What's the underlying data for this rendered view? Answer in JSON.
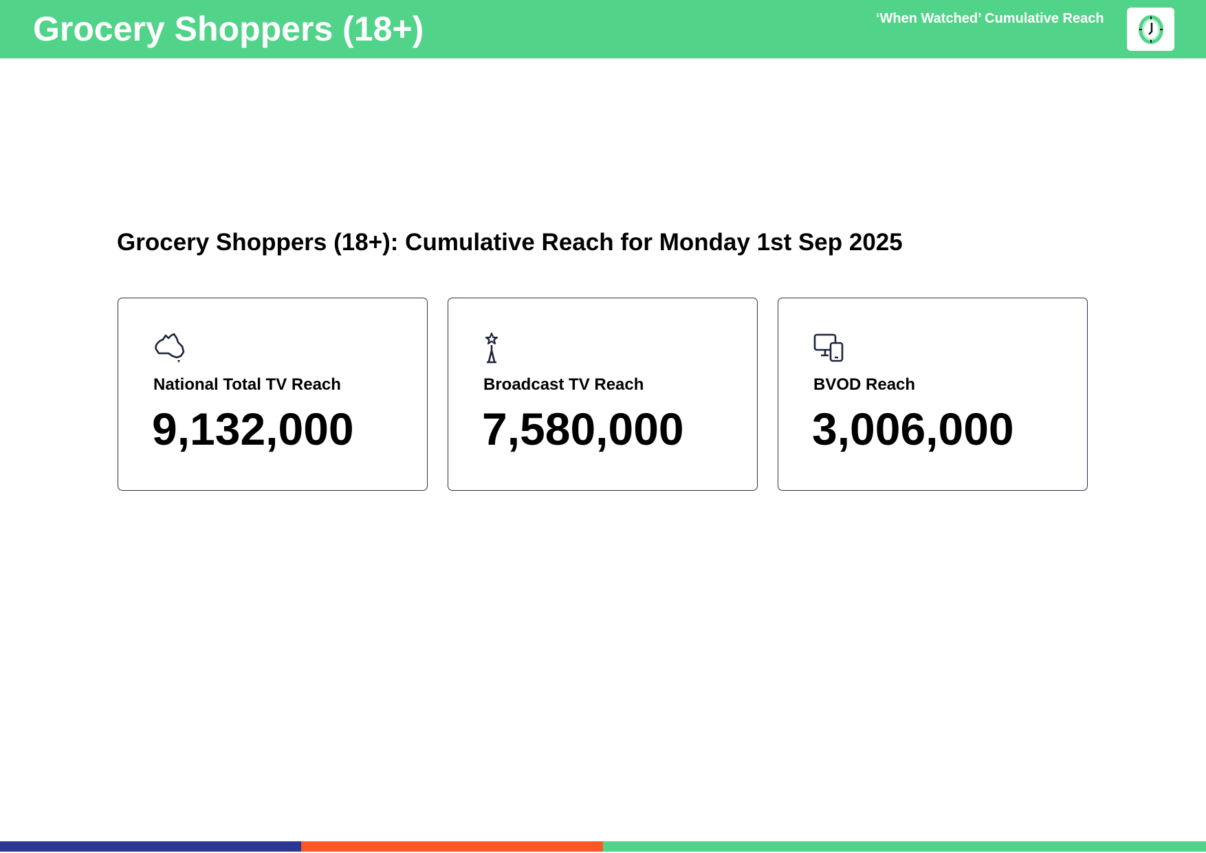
{
  "header": {
    "title": "Grocery Shoppers (18+)",
    "subtitle": "‘When Watched’ Cumulative Reach",
    "icon": "clock-icon"
  },
  "main": {
    "heading": "Grocery Shoppers (18+): Cumulative Reach for Monday 1st Sep 2025",
    "cards": [
      {
        "icon": "australia-map-icon",
        "label": "National Total TV Reach",
        "value": "9,132,000"
      },
      {
        "icon": "broadcast-tower-icon",
        "label": "Broadcast TV Reach",
        "value": "7,580,000"
      },
      {
        "icon": "devices-icon",
        "label": "BVOD Reach",
        "value": "3,006,000"
      }
    ]
  },
  "colors": {
    "header": "#51d389",
    "footer": [
      "#2b3893",
      "#ff5627",
      "#51d389"
    ],
    "border": "#2b3046"
  }
}
